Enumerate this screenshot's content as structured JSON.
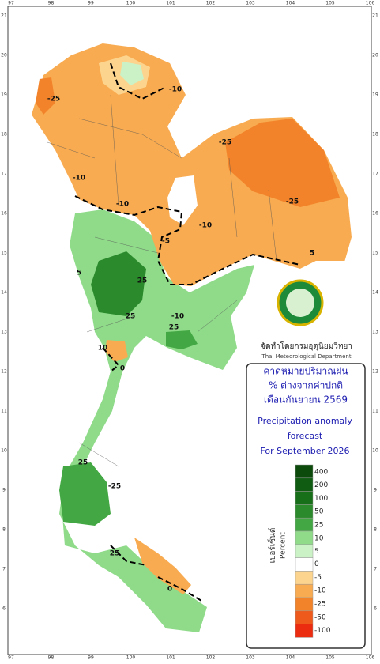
{
  "map": {
    "title_th": [
      "คาดหมายปริมาณฝน",
      "% ต่างจากค่าปกติ",
      "เดือนกันยายน 2569"
    ],
    "title_en": [
      "Precipitation anomaly",
      "forecast",
      "For September 2026"
    ],
    "agency_th": "จัดทำโดยกรมอุตุนิยมวิทยา",
    "agency_en": "Thai Meteorological Department",
    "legend_unit_th": "เปอร์เซ็นต์",
    "legend_unit_en": "Percent",
    "legend": [
      {
        "label": 400,
        "color": "#0b4a0b"
      },
      {
        "label": 200,
        "color": "#0f5c12"
      },
      {
        "label": 100,
        "color": "#177019"
      },
      {
        "label": 50,
        "color": "#2b8a2b"
      },
      {
        "label": 25,
        "color": "#43a843"
      },
      {
        "label": 10,
        "color": "#8fdb8a"
      },
      {
        "label": 5,
        "color": "#caf2c6"
      },
      {
        "label": 0,
        "color": "#ffffff"
      },
      {
        "label": -5,
        "color": "#fdd48e"
      },
      {
        "label": -10,
        "color": "#f8ab50"
      },
      {
        "label": -25,
        "color": "#f2832a"
      },
      {
        "label": -50,
        "color": "#ee5a1c"
      },
      {
        "label": -100,
        "color": "#ec2c10"
      }
    ],
    "lon_ticks": [
      97,
      98,
      99,
      100,
      101,
      102,
      103,
      104,
      105,
      106
    ],
    "lat_ticks": [
      21,
      20,
      19,
      18,
      17,
      16,
      15,
      14,
      13,
      12,
      11,
      10,
      9,
      8,
      7,
      6
    ],
    "contour_labels": [
      -25,
      -10,
      -10,
      -25,
      -25,
      -10,
      -10,
      5,
      -5,
      25,
      5,
      25,
      10,
      -10,
      25,
      0,
      25,
      -25,
      25,
      0
    ]
  }
}
